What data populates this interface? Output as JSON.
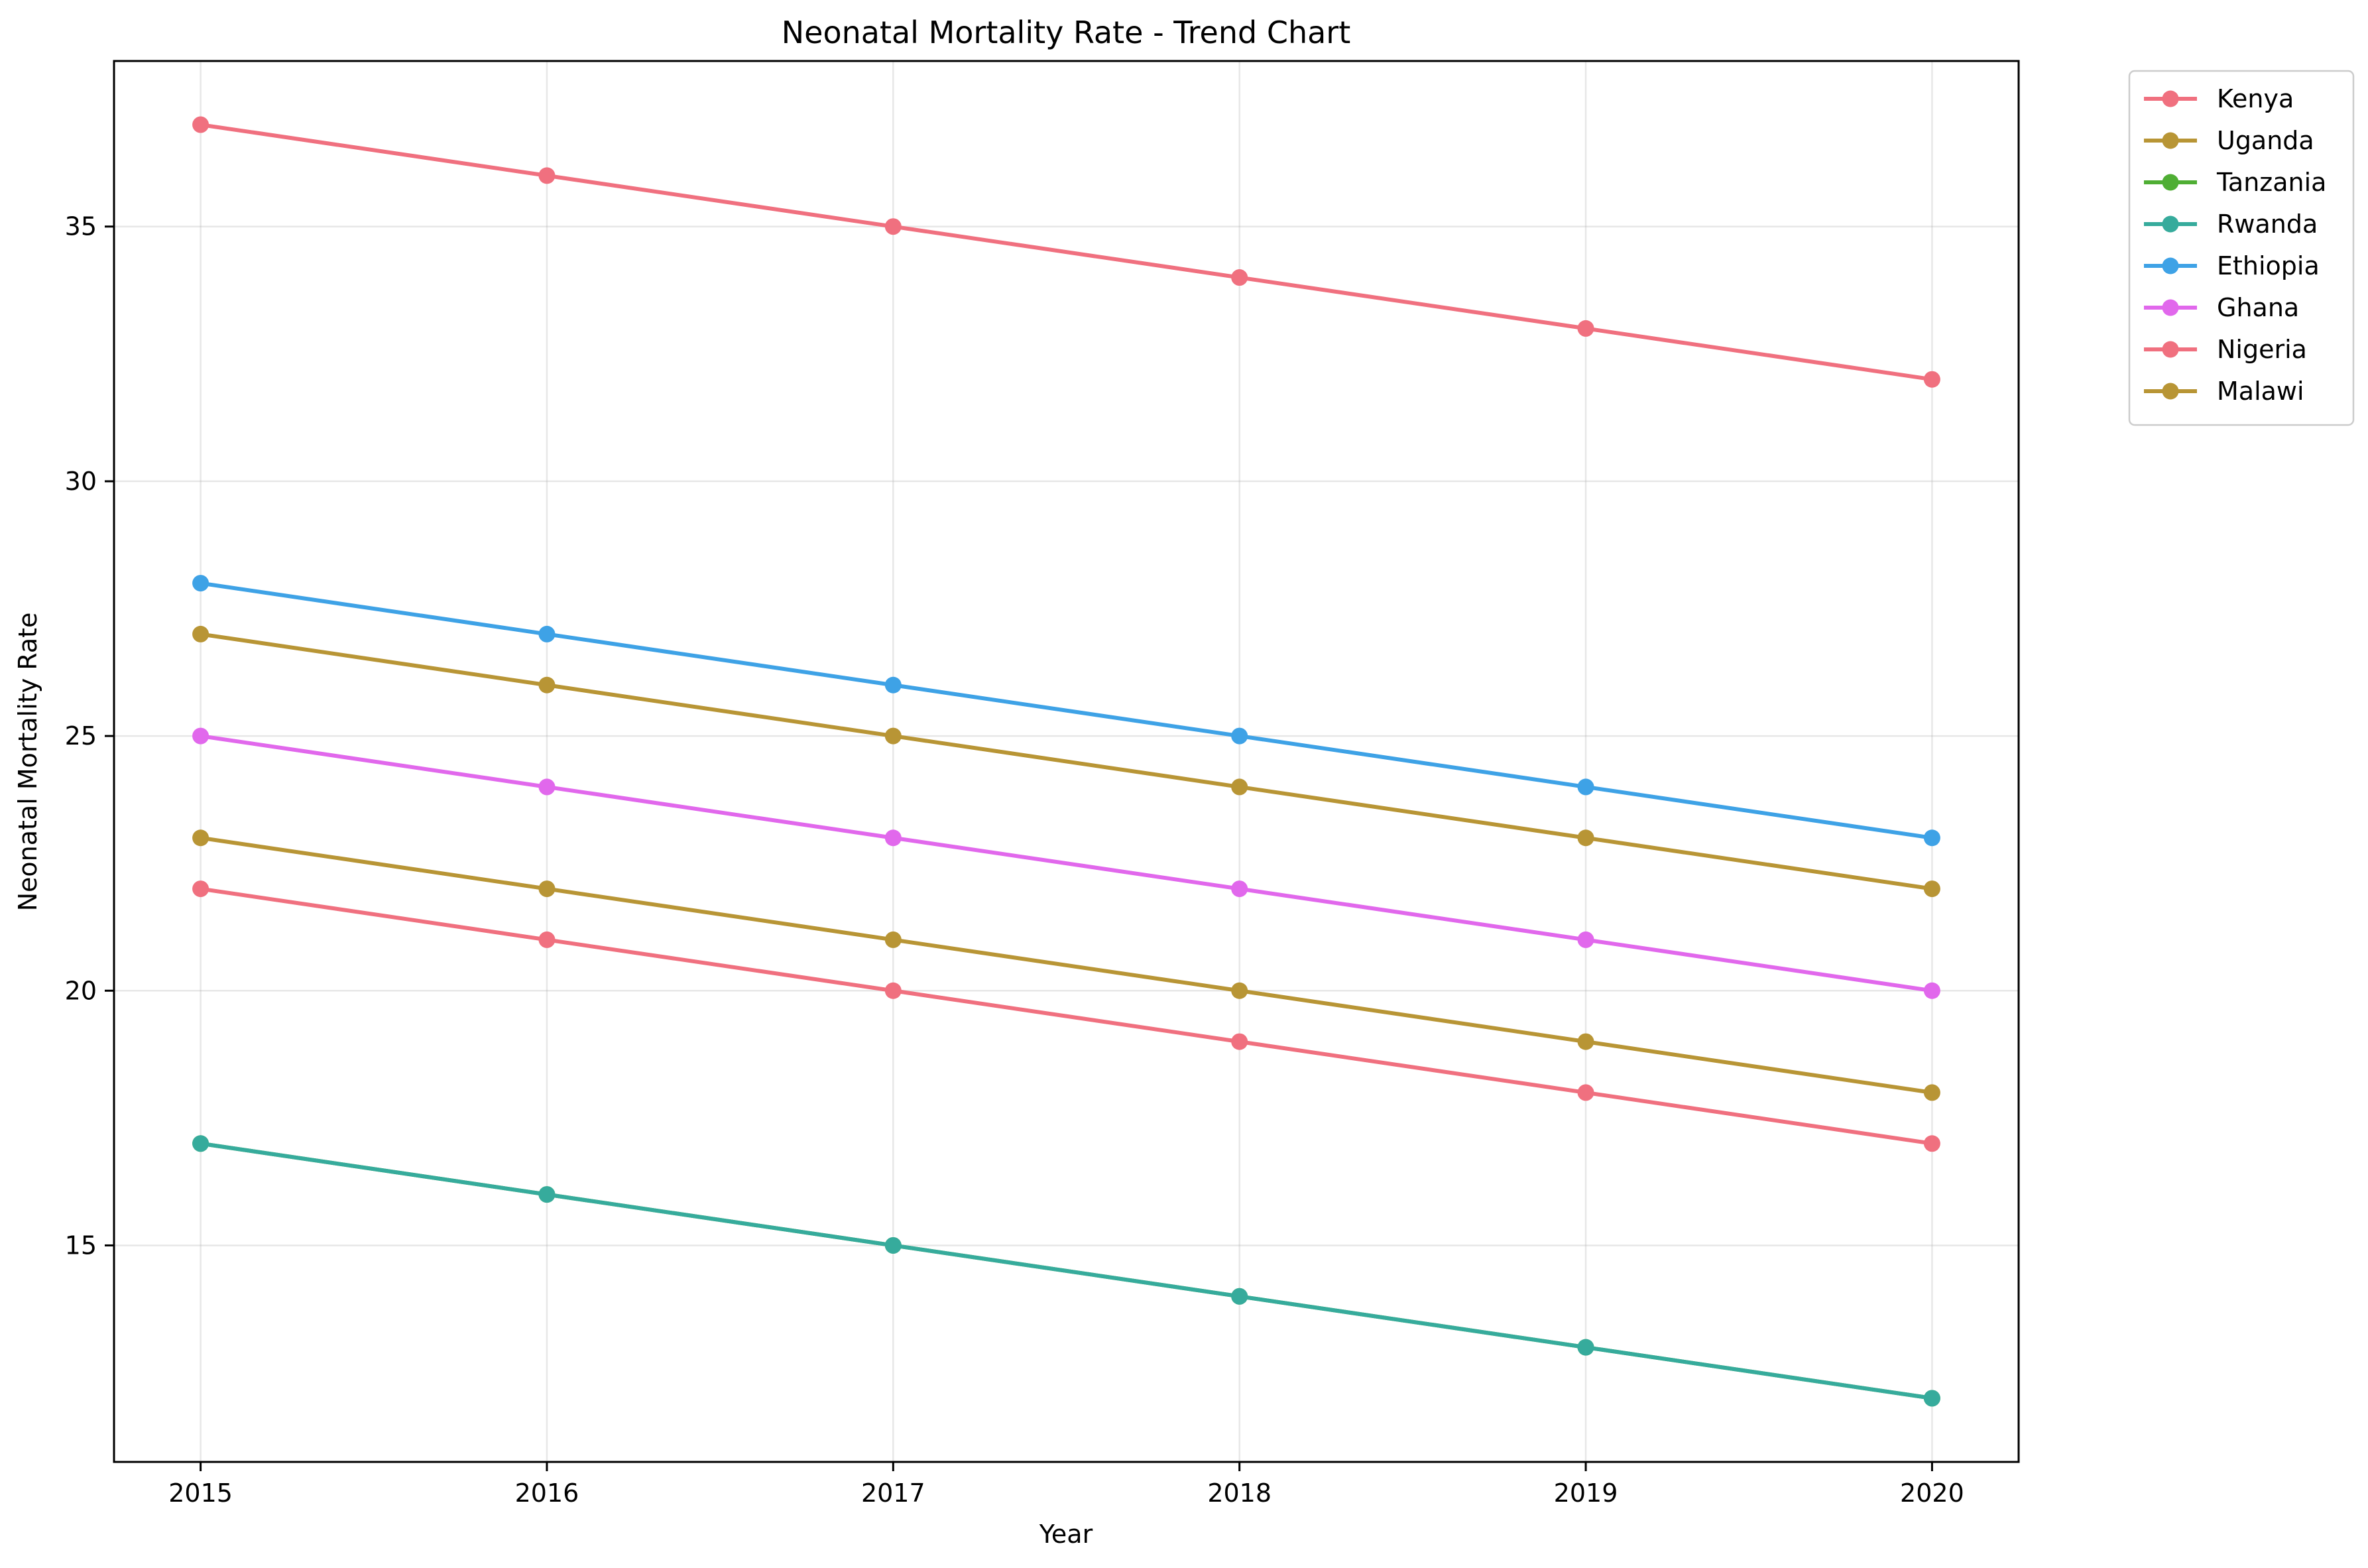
{
  "chart_data": {
    "type": "line",
    "title": "Neonatal Mortality Rate - Trend Chart",
    "xlabel": "Year",
    "ylabel": "Neonatal Mortality Rate",
    "x": [
      2015,
      2016,
      2017,
      2018,
      2019,
      2020
    ],
    "x_tick_labels": [
      "2015",
      "2016",
      "2017",
      "2018",
      "2019",
      "2020"
    ],
    "xlim": [
      2014.75,
      2020.25
    ],
    "y_ticks": [
      15,
      20,
      25,
      30,
      35
    ],
    "y_tick_labels": [
      "15",
      "20",
      "25",
      "30",
      "35"
    ],
    "ylim": [
      10.75,
      38.25
    ],
    "grid": true,
    "legend_position": "outside-top-right",
    "series": [
      {
        "name": "Kenya",
        "color": "#f0707f",
        "values": [
          22,
          21,
          20,
          19,
          18,
          17
        ]
      },
      {
        "name": "Uganda",
        "color": "#b89535",
        "values": [
          23,
          22,
          21,
          20,
          19,
          18
        ]
      },
      {
        "name": "Tanzania",
        "color": "#4fae34",
        "values": [
          17,
          16,
          15,
          14,
          13,
          12
        ]
      },
      {
        "name": "Rwanda",
        "color": "#36ab9c",
        "values": [
          17,
          16,
          15,
          14,
          13,
          12
        ]
      },
      {
        "name": "Ethiopia",
        "color": "#3ea2e6",
        "values": [
          28,
          27,
          26,
          25,
          24,
          23
        ]
      },
      {
        "name": "Ghana",
        "color": "#e168ec",
        "values": [
          25,
          24,
          23,
          22,
          21,
          20
        ]
      },
      {
        "name": "Nigeria",
        "color": "#f0707f",
        "values": [
          37,
          36,
          35,
          34,
          33,
          32
        ]
      },
      {
        "name": "Malawi",
        "color": "#b89535",
        "values": [
          27,
          26,
          25,
          24,
          23,
          22
        ]
      }
    ]
  }
}
